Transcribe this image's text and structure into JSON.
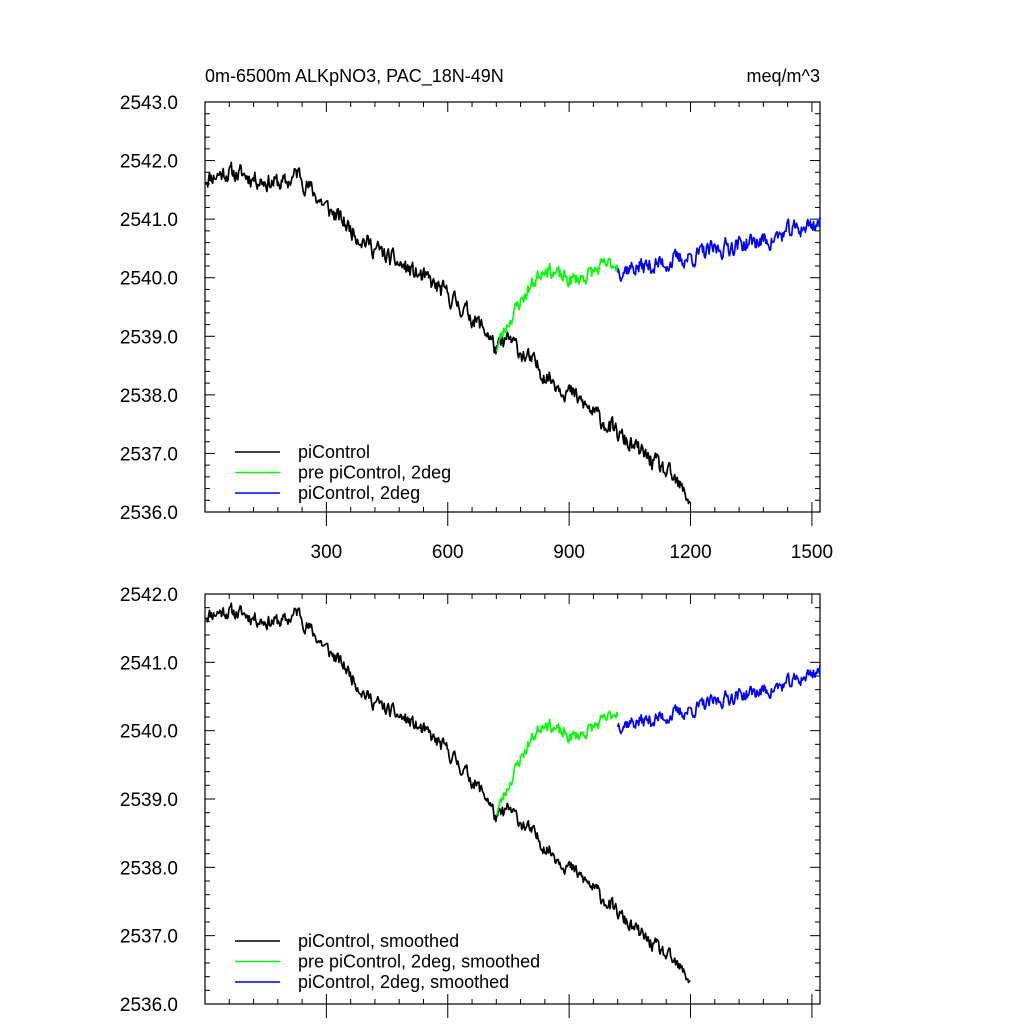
{
  "chart_data": [
    {
      "type": "line",
      "title_left": "0m-6500m ALKpNO3, PAC_18N-49N",
      "title_right": "meq/m^3",
      "xlabel": "",
      "ylabel": "",
      "xlim": [
        0,
        1520
      ],
      "ylim": [
        2536.0,
        2543.0
      ],
      "xticks": [
        300,
        600,
        900,
        1200,
        1500
      ],
      "xtick_labels": [
        "300",
        "600",
        "900",
        "1200",
        "1500"
      ],
      "yticks": [
        2536.0,
        2537.0,
        2538.0,
        2539.0,
        2540.0,
        2541.0,
        2542.0,
        2543.0
      ],
      "ytick_labels": [
        "2536.0",
        "2537.0",
        "2538.0",
        "2539.0",
        "2540.0",
        "2541.0",
        "2542.0",
        "2543.0"
      ],
      "legend_position": "bottom-left",
      "series": [
        {
          "name": "piControl",
          "color": "#000000",
          "noise": 0.13,
          "seed": 11,
          "points": [
            [
              1,
              2541.7
            ],
            [
              50,
              2541.8
            ],
            [
              100,
              2541.75
            ],
            [
              150,
              2541.65
            ],
            [
              200,
              2541.6
            ],
            [
              230,
              2541.8
            ],
            [
              250,
              2541.6
            ],
            [
              300,
              2541.2
            ],
            [
              350,
              2540.9
            ],
            [
              400,
              2540.6
            ],
            [
              450,
              2540.35
            ],
            [
              500,
              2540.15
            ],
            [
              550,
              2539.95
            ],
            [
              600,
              2539.7
            ],
            [
              650,
              2539.4
            ],
            [
              700,
              2539.05
            ],
            [
              720,
              2538.75
            ],
            [
              750,
              2538.95
            ],
            [
              800,
              2538.6
            ],
            [
              850,
              2538.3
            ],
            [
              900,
              2538.05
            ],
            [
              950,
              2537.75
            ],
            [
              1000,
              2537.45
            ],
            [
              1050,
              2537.15
            ],
            [
              1100,
              2536.9
            ],
            [
              1150,
              2536.6
            ],
            [
              1200,
              2536.2
            ]
          ]
        },
        {
          "name": "pre piControl, 2deg",
          "color": "#00ff00",
          "noise": 0.11,
          "seed": 23,
          "points": [
            [
              720,
              2538.8
            ],
            [
              750,
              2539.25
            ],
            [
              780,
              2539.6
            ],
            [
              810,
              2539.9
            ],
            [
              840,
              2540.2
            ],
            [
              870,
              2540.05
            ],
            [
              900,
              2539.95
            ],
            [
              930,
              2540.0
            ],
            [
              960,
              2540.1
            ],
            [
              990,
              2540.2
            ],
            [
              1020,
              2540.25
            ]
          ]
        },
        {
          "name": "piControl, 2deg",
          "color": "#0000ff",
          "noise": 0.13,
          "seed": 37,
          "points": [
            [
              1020,
              2540.15
            ],
            [
              1100,
              2540.2
            ],
            [
              1200,
              2540.35
            ],
            [
              1300,
              2540.55
            ],
            [
              1400,
              2540.65
            ],
            [
              1450,
              2540.8
            ],
            [
              1520,
              2540.95
            ]
          ]
        }
      ]
    },
    {
      "type": "line",
      "title_left": "",
      "title_right": "",
      "xlabel": "",
      "ylabel": "",
      "xlim": [
        0,
        1520
      ],
      "ylim": [
        2536.0,
        2542.0
      ],
      "xticks": [
        300,
        600,
        900,
        1200,
        1500
      ],
      "yticks": [
        2536.0,
        2537.0,
        2538.0,
        2539.0,
        2540.0,
        2541.0,
        2542.0
      ],
      "ytick_labels": [
        "2536.0",
        "2537.0",
        "2538.0",
        "2539.0",
        "2540.0",
        "2541.0",
        "2542.0"
      ],
      "legend_position": "bottom-left",
      "series": [
        {
          "name": "piControl, smoothed",
          "color": "#000000",
          "noise": 0.09,
          "seed": 11,
          "points": [
            [
              1,
              2541.7
            ],
            [
              50,
              2541.75
            ],
            [
              100,
              2541.7
            ],
            [
              150,
              2541.6
            ],
            [
              200,
              2541.6
            ],
            [
              230,
              2541.75
            ],
            [
              250,
              2541.55
            ],
            [
              300,
              2541.2
            ],
            [
              350,
              2540.9
            ],
            [
              400,
              2540.5
            ],
            [
              450,
              2540.3
            ],
            [
              500,
              2540.15
            ],
            [
              550,
              2539.95
            ],
            [
              600,
              2539.7
            ],
            [
              650,
              2539.35
            ],
            [
              700,
              2539.0
            ],
            [
              720,
              2538.7
            ],
            [
              750,
              2538.85
            ],
            [
              800,
              2538.55
            ],
            [
              850,
              2538.25
            ],
            [
              900,
              2538.0
            ],
            [
              950,
              2537.75
            ],
            [
              1000,
              2537.45
            ],
            [
              1050,
              2537.15
            ],
            [
              1100,
              2536.9
            ],
            [
              1150,
              2536.65
            ],
            [
              1200,
              2536.35
            ]
          ]
        },
        {
          "name": "pre piControl, 2deg, smoothed",
          "color": "#00ff00",
          "noise": 0.08,
          "seed": 23,
          "points": [
            [
              720,
              2538.8
            ],
            [
              750,
              2539.2
            ],
            [
              780,
              2539.6
            ],
            [
              810,
              2539.9
            ],
            [
              840,
              2540.15
            ],
            [
              870,
              2540.0
            ],
            [
              900,
              2539.9
            ],
            [
              930,
              2539.95
            ],
            [
              960,
              2540.05
            ],
            [
              990,
              2540.15
            ],
            [
              1020,
              2540.3
            ]
          ]
        },
        {
          "name": "piControl, 2deg, smoothed",
          "color": "#0000ff",
          "noise": 0.09,
          "seed": 37,
          "points": [
            [
              1020,
              2540.1
            ],
            [
              1100,
              2540.15
            ],
            [
              1200,
              2540.3
            ],
            [
              1300,
              2540.5
            ],
            [
              1400,
              2540.6
            ],
            [
              1450,
              2540.7
            ],
            [
              1520,
              2540.9
            ]
          ]
        }
      ]
    }
  ]
}
